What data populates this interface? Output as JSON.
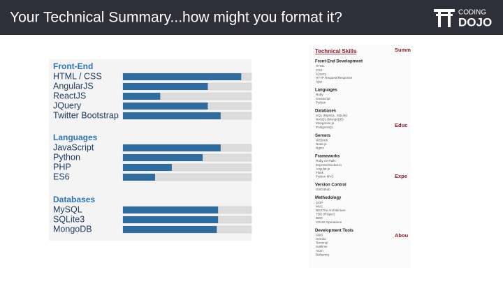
{
  "header": {
    "title": "Your Technical Summary...how might you format it?",
    "logo": [
      "CODING",
      "DOJO"
    ]
  },
  "skills": {
    "xlim": [
      0,
      100
    ],
    "groups": [
      {
        "heading": "Front-End",
        "items": [
          "HTML / CSS",
          "AngularJS",
          "ReactJS",
          "JQuery",
          "Twitter Bootstrap"
        ],
        "values": [
          92,
          66,
          29,
          66,
          76
        ]
      },
      {
        "heading": "Languages",
        "items": [
          "JavaScript",
          "Python",
          "PHP",
          "ES6"
        ],
        "values": [
          76,
          62,
          38,
          25
        ]
      },
      {
        "heading": "Databases",
        "items": [
          "MySQL",
          "SQLite3",
          "MongoDB"
        ],
        "values": [
          74,
          74,
          73
        ]
      }
    ]
  },
  "resume": {
    "title": "Technical Skills",
    "sections": [
      {
        "heading": "Front-End Development",
        "items": [
          "HTML",
          "CSS",
          "JQuery",
          "HTTP Request/Response",
          "Ajax"
        ]
      },
      {
        "heading": "Languages",
        "items": [
          "Ruby",
          "Javascript",
          "Python"
        ]
      },
      {
        "heading": "Databases",
        "items": [
          "SQL (MySQL, SQLite)",
          "NoSQL (MongoDB)",
          "Mongoose.js",
          "PostgreSQL"
        ]
      },
      {
        "heading": "Servers",
        "items": [
          "WEBrick",
          "Node.js",
          "Nginx"
        ]
      },
      {
        "heading": "Frameworks",
        "items": [
          "Ruby on Rails",
          "Express/Socket.io",
          "Angular.js",
          "Flask",
          "Python MVC"
        ]
      },
      {
        "heading": "Version Control",
        "items": [
          "Git/Github"
        ]
      },
      {
        "heading": "Methodology",
        "items": [
          "OOP",
          "MVC",
          "RESTful Architecture",
          "TDD (RSpec)",
          "BDD",
          "CRUD Operations"
        ]
      },
      {
        "heading": "Development Tools",
        "items": [
          "AWS",
          "Heroku",
          "Terminal",
          "Sublime",
          "Atom",
          "Balsamiq"
        ]
      }
    ],
    "side_headings": [
      "Summar",
      "Educ",
      "Expe",
      "Abou"
    ]
  }
}
